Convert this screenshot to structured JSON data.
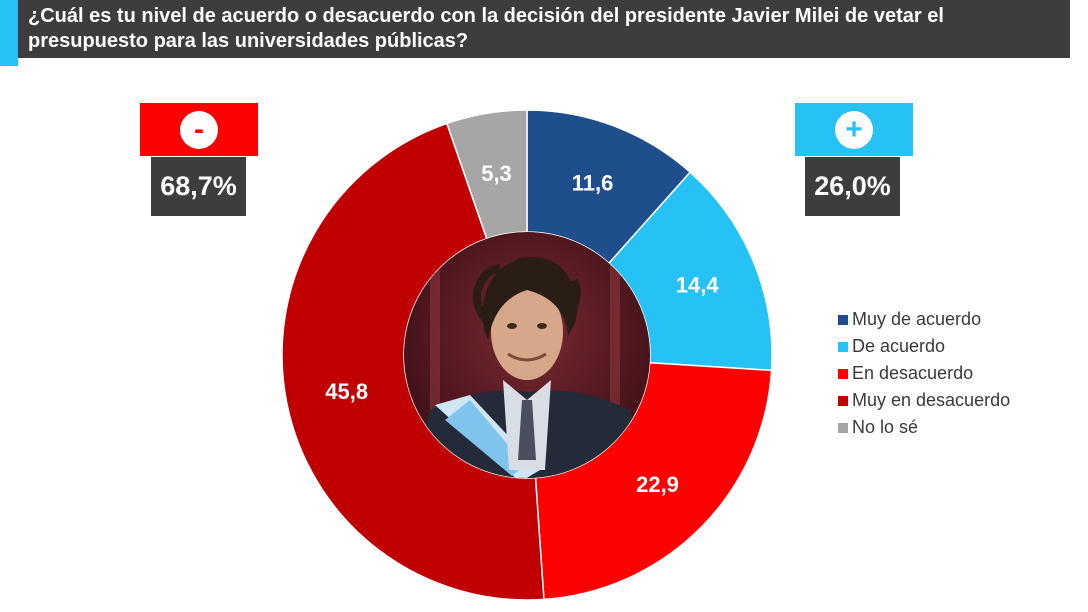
{
  "title": "¿Cuál es tu nivel de acuerdo o desacuerdo con la decisión del presidente Javier Milei de vetar el presupuesto para las universidades públicas?",
  "colors": {
    "title_bg": "#3d3d3d",
    "accent": "#27c2f5",
    "negative": "#fd0000",
    "positive": "#27c2f5"
  },
  "negative_summary": {
    "symbol": "-",
    "value": "68,7%"
  },
  "positive_summary": {
    "symbol": "+",
    "value": "26,0%"
  },
  "chart_data": {
    "type": "pie",
    "variant": "donut",
    "title": "¿Cuál es tu nivel de acuerdo o desacuerdo con la decisión del presidente Javier Milei de vetar el presupuesto para las universidades públicas?",
    "categories": [
      "Muy de acuerdo",
      "De acuerdo",
      "En desacuerdo",
      "Muy en desacuerdo",
      "No lo sé"
    ],
    "values": [
      11.6,
      14.4,
      22.9,
      45.8,
      5.3
    ],
    "labels": [
      "11,6",
      "14,4",
      "22,9",
      "45,8",
      "5,3"
    ],
    "colors": [
      "#1f4e8c",
      "#27c2f5",
      "#fd0000",
      "#c00000",
      "#a6a6a6"
    ],
    "legend_position": "right",
    "center_image": "portrait-photo"
  }
}
